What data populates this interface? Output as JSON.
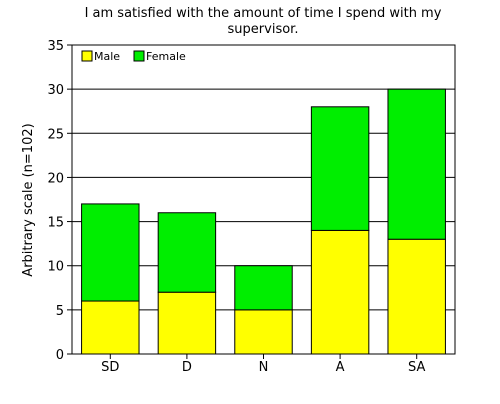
{
  "chart_data": {
    "type": "bar",
    "stacked": true,
    "title": "I am satisfied with the amount of time I spend with my supervisor.",
    "title_lines": [
      "I am satisfied with the amount of time I spend with my",
      "supervisor."
    ],
    "ylabel": "Arbitrary scale (n=102)",
    "xlabel": "",
    "categories": [
      "SD",
      "D",
      "N",
      "A",
      "SA"
    ],
    "series": [
      {
        "name": "Male",
        "color": "#ffff00",
        "values": [
          6,
          7,
          5,
          14,
          13
        ]
      },
      {
        "name": "Female",
        "color": "#00ee00",
        "values": [
          11,
          9,
          5,
          14,
          17
        ]
      }
    ],
    "ylim": [
      0,
      35
    ],
    "yticks": [
      "0",
      "5",
      "10",
      "15",
      "20",
      "25",
      "30",
      "35"
    ],
    "grid": true,
    "legend_position": "top-left"
  }
}
